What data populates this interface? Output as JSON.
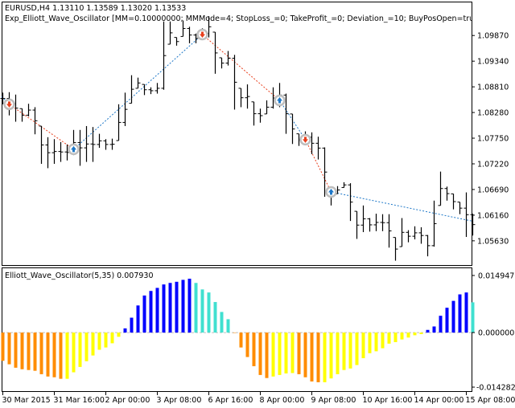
{
  "header": {
    "symbol_line": "EURUSD,H4  1.13110 1.13589 1.13020 1.13533",
    "expert_line": "Exp_Elliott_Wave_Oscillator [MM=0.10000000; MMMode=4; StopLoss_=0; TakeProfit_=0; Deviation_=10; BuyPosOpen=true; SellPosOpen"
  },
  "colors": {
    "bars": "#000000",
    "buy_line": "#1E78C8",
    "sell_line": "#E8401E",
    "orange": "#FF8C00",
    "yellow": "#FFFF00",
    "blue": "#0000FF",
    "cyan": "#40E0D0",
    "zero_line": "#C0C0C0"
  },
  "chart_data": [
    {
      "type": "ohlc",
      "ylim": [
        1.0513,
        1.1057
      ],
      "y_ticks": [
        "1.10400",
        "1.09870",
        "1.09340",
        "1.08810",
        "1.08280",
        "1.07750",
        "1.07220",
        "1.06690",
        "1.06160",
        "1.05630"
      ],
      "y_tick_values": [
        1.104,
        1.0987,
        1.0934,
        1.0881,
        1.0828,
        1.0775,
        1.0722,
        1.0669,
        1.0616,
        1.0563
      ],
      "high": [
        1.0869,
        1.087,
        1.0865,
        1.0836,
        1.0846,
        1.0839,
        1.08,
        1.0777,
        1.0773,
        1.0767,
        1.0762,
        1.0792,
        1.0792,
        1.08,
        1.0798,
        1.0784,
        1.0773,
        1.0774,
        1.0845,
        1.0869,
        1.0905,
        1.09,
        1.0886,
        1.088,
        1.0889,
        1.1016,
        1.1016,
        1.0983,
        1.1018,
        1.1005,
        1.0991,
        1.1002,
        1.1027,
        1.0994,
        1.0941,
        1.0955,
        1.0947,
        1.0878,
        1.0886,
        1.085,
        1.0836,
        1.0853,
        1.088,
        1.0889,
        1.0867,
        1.0825,
        1.0784,
        1.0789,
        1.0787,
        1.0778,
        1.0756,
        1.0673,
        1.0676,
        1.0684,
        1.0682,
        1.0624,
        1.0636,
        1.061,
        1.0619,
        1.0618,
        1.0618,
        1.057,
        1.061,
        1.0585,
        1.0593,
        1.0591,
        1.0575,
        1.0646,
        1.0706,
        1.0675,
        1.066,
        1.0643,
        1.0663,
        1.0619
      ],
      "low": [
        1.0845,
        1.0822,
        1.0809,
        1.0809,
        1.082,
        1.0783,
        1.0722,
        1.0713,
        1.0722,
        1.0726,
        1.0729,
        1.074,
        1.0718,
        1.0726,
        1.0726,
        1.0755,
        1.0751,
        1.0751,
        1.077,
        1.08,
        1.0847,
        1.0878,
        1.0864,
        1.0866,
        1.0867,
        1.0875,
        1.0969,
        1.0966,
        1.0985,
        1.0971,
        1.0971,
        1.098,
        1.0983,
        1.0908,
        1.0919,
        1.0925,
        1.0834,
        1.0839,
        1.0836,
        1.0801,
        1.0807,
        1.0825,
        1.0836,
        1.0839,
        1.0784,
        1.0763,
        1.0759,
        1.0765,
        1.0742,
        1.0731,
        1.0654,
        1.0636,
        1.066,
        1.0673,
        1.0604,
        1.0567,
        1.0581,
        1.0582,
        1.0583,
        1.0583,
        1.0549,
        1.0522,
        1.0551,
        1.056,
        1.0566,
        1.0557,
        1.0531,
        1.0551,
        1.0636,
        1.0646,
        1.0628,
        1.0618,
        1.0571,
        1.0574
      ],
      "signals": [
        {
          "bar": 1,
          "type": "sell",
          "price": 1.0845
        },
        {
          "bar": 11,
          "type": "buy",
          "price": 1.0752
        },
        {
          "bar": 31,
          "type": "sell",
          "price": 1.0989
        },
        {
          "bar": 43,
          "type": "buy",
          "price": 1.0853
        },
        {
          "bar": 47,
          "type": "sell",
          "price": 1.0772
        },
        {
          "bar": 51,
          "type": "buy",
          "price": 1.0664
        }
      ],
      "zigzag_start_price": 1.0861,
      "zigzag_end_price": 1.0604,
      "x_labels": [
        "30 Mar 2015",
        "31 Mar 16:00",
        "2 Apr 00:00",
        "3 Apr 08:00",
        "6 Apr 16:00",
        "8 Apr 00:00",
        "9 Apr 08:00",
        "10 Apr 16:00",
        "14 Apr 00:00",
        "15 Apr 08:00"
      ],
      "x_label_bars": [
        0,
        8,
        16,
        24,
        32,
        40,
        48,
        56,
        64,
        72
      ]
    },
    {
      "type": "bar",
      "title": "Elliott_Wave_Oscillator(5,35) 0.007930",
      "ylim": [
        -0.01533,
        0.01684
      ],
      "y_ticks": [
        "0.014947",
        "0.000000",
        "-0.014282"
      ],
      "y_tick_values": [
        0.014947,
        0,
        -0.014282
      ],
      "values": [
        -0.0074,
        -0.0083,
        -0.0092,
        -0.0096,
        -0.0098,
        -0.01,
        -0.0109,
        -0.0115,
        -0.0117,
        -0.0121,
        -0.0121,
        -0.0104,
        -0.009,
        -0.0075,
        -0.006,
        -0.0045,
        -0.0039,
        -0.0028,
        -0.0011,
        0.0011,
        0.0039,
        0.0071,
        0.0097,
        0.0109,
        0.0117,
        0.0126,
        0.013,
        0.0133,
        0.0138,
        0.0141,
        0.013,
        0.0113,
        0.0105,
        0.008,
        0.0054,
        0.0035,
        -0.0001,
        -0.0039,
        -0.0064,
        -0.0088,
        -0.0111,
        -0.0119,
        -0.0115,
        -0.0111,
        -0.0107,
        -0.0106,
        -0.0109,
        -0.0117,
        -0.0128,
        -0.013,
        -0.013,
        -0.012,
        -0.0109,
        -0.0098,
        -0.0094,
        -0.0085,
        -0.0067,
        -0.0054,
        -0.0049,
        -0.0041,
        -0.0029,
        -0.0025,
        -0.0018,
        -0.0013,
        -0.0007,
        -0.0004,
        0.0007,
        0.0016,
        0.0044,
        0.0065,
        0.0083,
        0.01,
        0.0105,
        0.00793
      ]
    }
  ]
}
